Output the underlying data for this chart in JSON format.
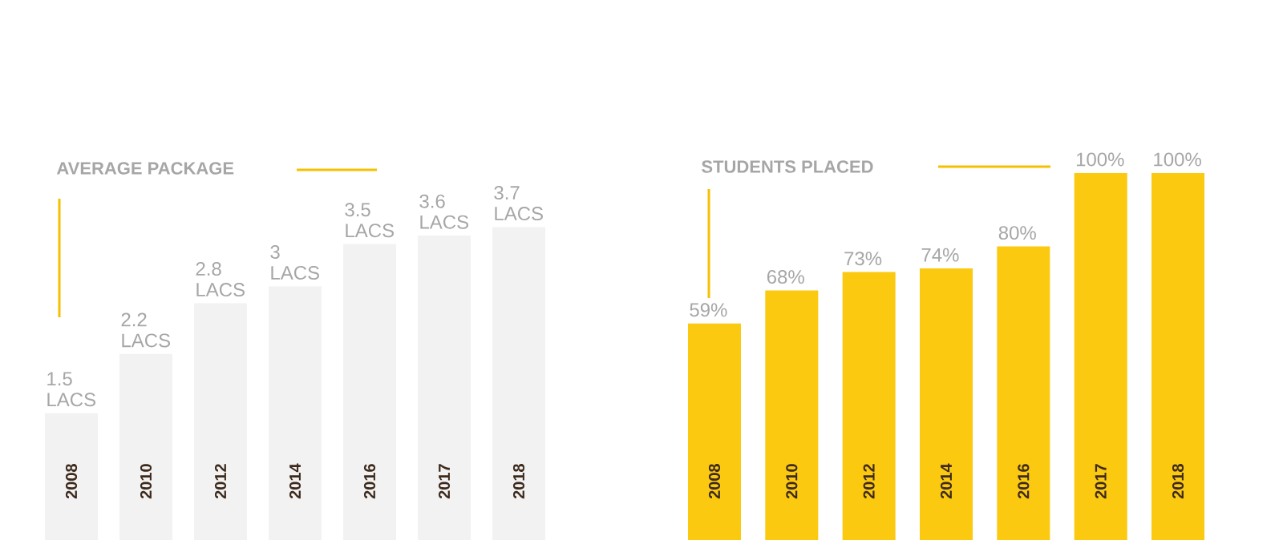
{
  "chart_data": [
    {
      "type": "bar",
      "title": "AVERAGE PACKAGE",
      "tick_labels": "x",
      "categories": [
        "2008",
        "2010",
        "2012",
        "2014",
        "2016",
        "2017",
        "2018"
      ],
      "values": [
        1.5,
        2.2,
        2.8,
        3,
        3.5,
        3.6,
        3.7
      ],
      "value_labels": [
        "1.5 LACS",
        "2.2 LACS",
        "2.8 LACS",
        "3 LACS",
        "3.5 LACS",
        "3.6 LACS",
        "3.7 LACS"
      ],
      "color": "#f2f2f2"
    },
    {
      "type": "bar",
      "title": "STUDENTS PLACED",
      "tick_labels": "x",
      "categories": [
        "2008",
        "2010",
        "2012",
        "2014",
        "2016",
        "2017",
        "2018"
      ],
      "values": [
        59,
        68,
        73,
        74,
        80,
        100,
        100
      ],
      "value_labels": [
        "59%",
        "68%",
        "73%",
        "74%",
        "80%",
        "100%",
        "100%"
      ],
      "color": "#fbc910"
    }
  ]
}
